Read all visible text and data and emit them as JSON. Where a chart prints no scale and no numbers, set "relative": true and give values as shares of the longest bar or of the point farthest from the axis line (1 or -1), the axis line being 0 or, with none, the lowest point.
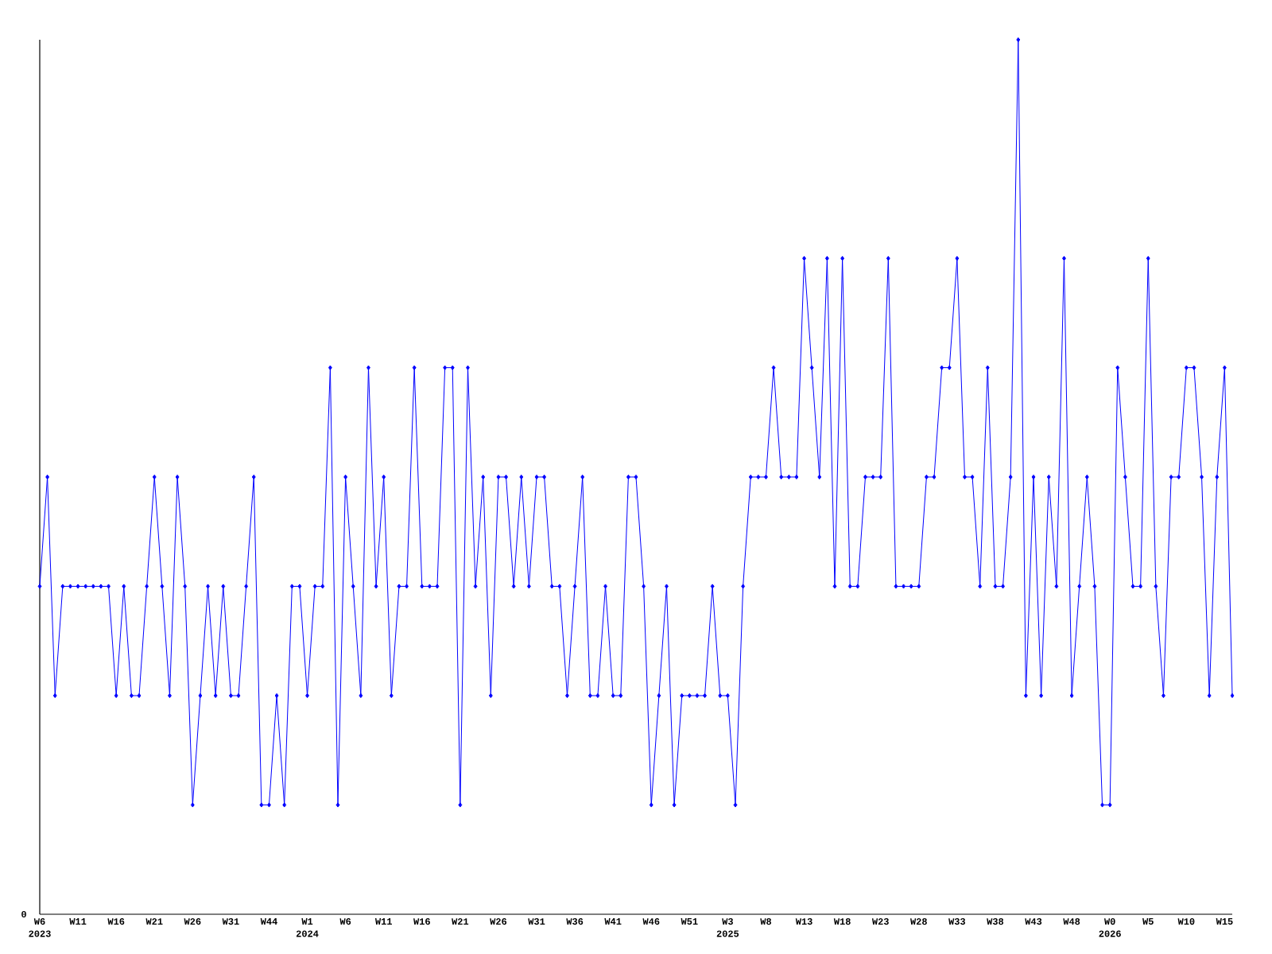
{
  "chart_data": {
    "type": "line",
    "relative": true,
    "color": "#0000ff",
    "marker": "diamond",
    "categories": [
      "W6",
      null,
      null,
      null,
      null,
      "W11",
      null,
      null,
      null,
      null,
      "W16",
      null,
      null,
      null,
      null,
      "W21",
      null,
      null,
      null,
      null,
      "W26",
      null,
      null,
      null,
      null,
      "W31",
      null,
      null,
      null,
      null,
      "W44",
      null,
      null,
      null,
      null,
      "W1",
      null,
      null,
      null,
      null,
      "W6",
      null,
      null,
      null,
      null,
      "W11",
      null,
      null,
      null,
      null,
      "W16",
      null,
      null,
      null,
      null,
      "W21",
      null,
      null,
      null,
      null,
      "W26",
      null,
      null,
      null,
      null,
      "W31",
      null,
      null,
      null,
      null,
      "W36",
      null,
      null,
      null,
      null,
      "W41",
      null,
      null,
      null,
      null,
      "W46",
      null,
      null,
      null,
      null,
      "W51",
      null,
      null,
      null,
      null,
      "W3",
      null,
      null,
      null,
      null,
      "W8",
      null,
      null,
      null,
      null,
      "W13",
      null,
      null,
      null,
      null,
      "W18",
      null,
      null,
      null,
      null,
      "W23",
      null,
      null,
      null,
      null,
      "W28",
      null,
      null,
      null,
      null,
      "W33",
      null,
      null,
      null,
      null,
      "W38",
      null,
      null,
      null,
      null,
      "W43",
      null,
      null,
      null,
      null,
      "W48",
      null,
      null,
      null,
      null,
      "W0",
      null,
      null,
      null,
      null,
      "W5",
      null,
      null,
      null,
      null,
      "W10",
      null,
      null,
      null,
      null,
      "W15",
      null
    ],
    "values": [
      0.375,
      0.5,
      0.25,
      0.375,
      0.375,
      0.375,
      0.375,
      0.375,
      0.375,
      0.375,
      0.25,
      0.375,
      0.25,
      0.25,
      0.375,
      0.5,
      0.375,
      0.25,
      0.5,
      0.375,
      0.125,
      0.25,
      0.375,
      0.25,
      0.375,
      0.25,
      0.25,
      0.375,
      0.5,
      0.125,
      0.125,
      0.25,
      0.125,
      0.375,
      0.375,
      0.25,
      0.375,
      0.375,
      0.625,
      0.125,
      0.5,
      0.375,
      0.25,
      0.625,
      0.375,
      0.5,
      0.25,
      0.375,
      0.375,
      0.625,
      0.375,
      0.375,
      0.375,
      0.625,
      0.625,
      0.125,
      0.625,
      0.375,
      0.5,
      0.25,
      0.5,
      0.5,
      0.375,
      0.5,
      0.375,
      0.5,
      0.5,
      0.375,
      0.375,
      0.25,
      0.375,
      0.5,
      0.25,
      0.25,
      0.375,
      0.25,
      0.25,
      0.5,
      0.5,
      0.375,
      0.125,
      0.25,
      0.375,
      0.125,
      0.25,
      0.25,
      0.25,
      0.25,
      0.375,
      0.25,
      0.25,
      0.125,
      0.375,
      0.5,
      0.5,
      0.5,
      0.625,
      0.5,
      0.5,
      0.5,
      0.75,
      0.625,
      0.5,
      0.75,
      0.375,
      0.75,
      0.375,
      0.375,
      0.5,
      0.5,
      0.5,
      0.75,
      0.375,
      0.375,
      0.375,
      0.375,
      0.5,
      0.5,
      0.625,
      0.625,
      0.75,
      0.5,
      0.5,
      0.375,
      0.625,
      0.375,
      0.375,
      0.5,
      1,
      0.25,
      0.5,
      0.25,
      0.5,
      0.375,
      0.75,
      0.25,
      0.375,
      0.5,
      0.375,
      0.125,
      0.125,
      0.625,
      0.5,
      0.375,
      0.375,
      0.75,
      0.375,
      0.25,
      0.5,
      0.5,
      0.625,
      0.625,
      0.5,
      0.25,
      0.5,
      0.625,
      0.25
    ],
    "annotations": [
      "0",
      "2023",
      "2024",
      "2025",
      "2026"
    ]
  }
}
